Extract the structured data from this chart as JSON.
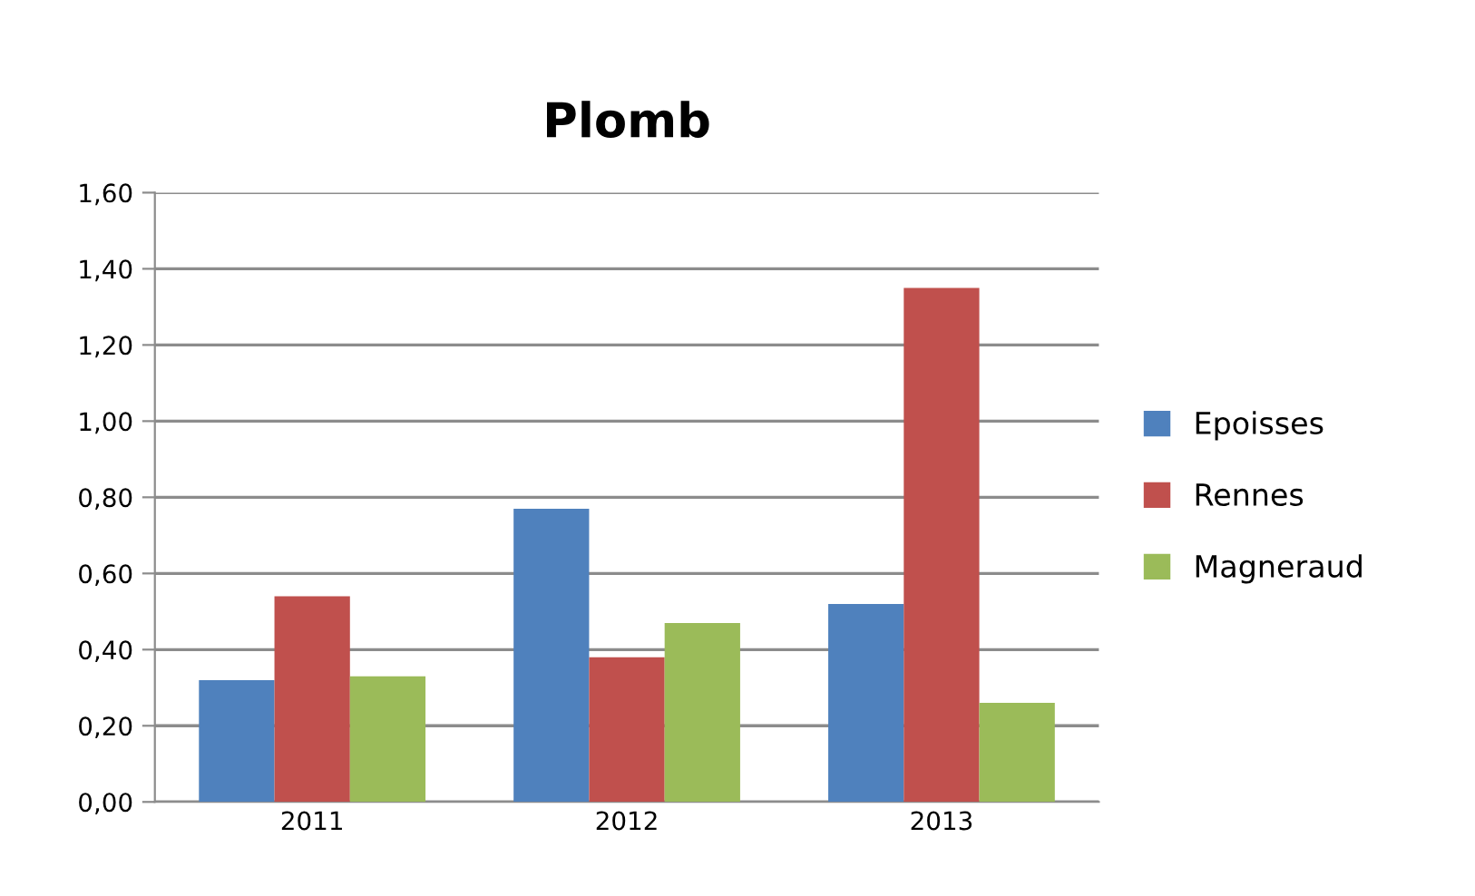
{
  "chart_data": {
    "type": "bar",
    "title": "Plomb",
    "categories": [
      "2011",
      "2012",
      "2013"
    ],
    "series": [
      {
        "name": "Epoisses",
        "color": "#4f81bd",
        "values": [
          0.32,
          0.77,
          0.52
        ]
      },
      {
        "name": "Rennes",
        "color": "#c0504d",
        "values": [
          0.54,
          0.38,
          1.35
        ]
      },
      {
        "name": "Magneraud",
        "color": "#9bbb59",
        "values": [
          0.33,
          0.47,
          0.26
        ]
      }
    ],
    "ylim": [
      0,
      1.6
    ],
    "yticks": [
      {
        "value": 0,
        "label": "0,00"
      },
      {
        "value": 0.2,
        "label": "0,20"
      },
      {
        "value": 0.4,
        "label": "0,40"
      },
      {
        "value": 0.6,
        "label": "0,60"
      },
      {
        "value": 0.8,
        "label": "0,80"
      },
      {
        "value": 1.0,
        "label": "1,00"
      },
      {
        "value": 1.2,
        "label": "1,20"
      },
      {
        "value": 1.4,
        "label": "1,40"
      },
      {
        "value": 1.6,
        "label": "1,60"
      }
    ],
    "grid": "y",
    "legend": "right"
  }
}
